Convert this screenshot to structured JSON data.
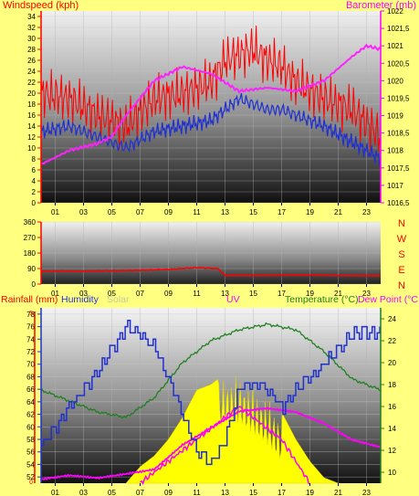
{
  "colors": {
    "page_bg": "#ffff80",
    "windspeed": "#ff0000",
    "wind_avg": "#2030d0",
    "barometer": "#ff20ff",
    "direction": "#ff0000",
    "rainfall": "#ff0000",
    "humidity": "#2030d0",
    "solar": "#c8c8a0",
    "uv": "#ff00ff",
    "temperature": "#208020",
    "dew_point": "#ff00ff",
    "solar_fill": "#ffff00"
  },
  "header": {
    "windspeed_label": "Windspeed (kph)",
    "barometer_label": "Barometer (mb)"
  },
  "direction": {
    "compass_labels": [
      "N",
      "W",
      "S",
      "E",
      "N"
    ]
  },
  "legend_bottom": {
    "rainfall": "Rainfall (mm)",
    "humidity": "Humidity",
    "solar": "Solar",
    "uv": "UV",
    "temperature": "Temperature (°C)",
    "dew_point": "Dew Point (°C"
  },
  "chart_data": [
    {
      "type": "line",
      "x_ticks": [
        "01",
        "03",
        "05",
        "07",
        "09",
        "11",
        "13",
        "15",
        "17",
        "19",
        "21",
        "23"
      ],
      "y_left_ticks": [
        "0",
        "2",
        "4",
        "6",
        "8",
        "10",
        "12",
        "14",
        "16",
        "18",
        "20",
        "22",
        "24",
        "26",
        "28",
        "30",
        "32",
        "34"
      ],
      "y_left_range": [
        0,
        35
      ],
      "y_right_ticks": [
        "1016,5",
        "1017",
        "1017,5",
        "1018",
        "1018,5",
        "1019",
        "1019,5",
        "1020",
        "1020,5",
        "1021",
        "1021,5",
        "1022"
      ],
      "y_right_range": [
        1016.5,
        1022
      ],
      "series": [
        {
          "name": "Windspeed (kph)",
          "axis": "left",
          "x": [
            0,
            2,
            4,
            6,
            8,
            10,
            12,
            13,
            14,
            15,
            16,
            17,
            18,
            20,
            22,
            24
          ],
          "values": [
            20,
            19,
            16,
            14,
            19,
            20,
            22,
            26,
            27,
            28,
            26,
            25,
            22,
            19,
            17,
            12
          ]
        },
        {
          "name": "",
          "axis": "left",
          "x": [
            0,
            2,
            4,
            6,
            8,
            10,
            12,
            13,
            14,
            15,
            16,
            17,
            18,
            20,
            22,
            24
          ],
          "values": [
            13,
            14,
            12,
            10,
            13,
            14,
            15,
            17,
            19,
            18,
            17,
            17,
            16,
            14,
            11,
            8
          ]
        },
        {
          "name": "Barometer (mb)",
          "axis": "right",
          "x": [
            0,
            2,
            4,
            5,
            6,
            8,
            10,
            11,
            12,
            14,
            16,
            18,
            20,
            22,
            23,
            24
          ],
          "values": [
            1017.6,
            1018,
            1018.2,
            1018.4,
            1019,
            1020,
            1020.4,
            1020.3,
            1020.2,
            1019.7,
            1019.8,
            1019.7,
            1020,
            1020.7,
            1021,
            1020.9
          ]
        }
      ]
    },
    {
      "type": "line",
      "x_ticks": [
        "01",
        "03",
        "05",
        "07",
        "09",
        "11",
        "13",
        "15",
        "17",
        "19",
        "21",
        "23"
      ],
      "y_ticks": [
        "0",
        "90",
        "180",
        "270",
        "360"
      ],
      "y_range": [
        0,
        360
      ],
      "series": [
        {
          "name": "",
          "x": [
            0,
            3,
            6,
            9,
            11,
            12.5,
            13,
            15,
            18,
            21,
            24
          ],
          "values": [
            75,
            75,
            78,
            85,
            95,
            90,
            50,
            50,
            52,
            50,
            48
          ]
        }
      ]
    },
    {
      "type": "line",
      "x_ticks": [
        "01",
        "03",
        "05",
        "07",
        "09",
        "11",
        "13",
        "15",
        "17",
        "19",
        "21",
        "23"
      ],
      "y_left_ticks": [
        "52",
        "54",
        "56",
        "58",
        "60",
        "62",
        "64",
        "66",
        "68",
        "70",
        "72",
        "74",
        "76",
        "78"
      ],
      "y_left_range": [
        51,
        79
      ],
      "y_left_secondary_ticks": [
        "0",
        "5"
      ],
      "y_right_ticks": [
        "10",
        "12",
        "14",
        "16",
        "18",
        "20",
        "22",
        "24"
      ],
      "y_right_range": [
        9,
        25
      ],
      "series": [
        {
          "name": "Humidity",
          "axis": "left",
          "x": [
            0,
            2,
            4,
            6,
            8,
            10,
            11,
            12,
            13,
            14,
            15,
            16,
            17,
            18,
            20,
            22,
            24
          ],
          "values": [
            57,
            63,
            69,
            76,
            73,
            62,
            56,
            54,
            58,
            66,
            67,
            66,
            63,
            66,
            70,
            75,
            75
          ]
        },
        {
          "name": "Temperature (°C)",
          "axis": "right",
          "x": [
            0,
            2,
            4,
            6,
            8,
            10,
            12,
            14,
            16,
            18,
            20,
            22,
            24
          ],
          "values": [
            17.5,
            16.5,
            15.5,
            15,
            16.8,
            20,
            22,
            23,
            23.5,
            23,
            21,
            18.5,
            17.5
          ]
        },
        {
          "name": "Dew Point (°C",
          "axis": "right",
          "x": [
            0,
            2,
            4,
            6,
            8,
            10,
            12,
            14,
            16,
            18,
            20,
            22,
            24
          ],
          "values": [
            9.3,
            9.7,
            9.5,
            9.9,
            10.3,
            12.5,
            14,
            15.5,
            15.8,
            15.5,
            14.5,
            13,
            12.3
          ]
        },
        {
          "name": "UV",
          "axis": "right",
          "x": [
            7,
            8,
            10,
            12,
            13,
            14,
            15,
            16,
            17,
            18,
            19
          ],
          "values": [
            9,
            10,
            12,
            14,
            15,
            16,
            15,
            14,
            13,
            11,
            9
          ]
        },
        {
          "name": "Solar",
          "axis": "right",
          "fill": true,
          "x": [
            6,
            7,
            8,
            9,
            10,
            11,
            12,
            13,
            14,
            15,
            16,
            17,
            18,
            19,
            20,
            21
          ],
          "values": [
            9,
            10.5,
            11.5,
            13,
            15,
            17.5,
            18,
            19,
            19,
            18,
            17,
            15.5,
            13,
            11,
            9.5,
            9
          ]
        }
      ]
    }
  ]
}
